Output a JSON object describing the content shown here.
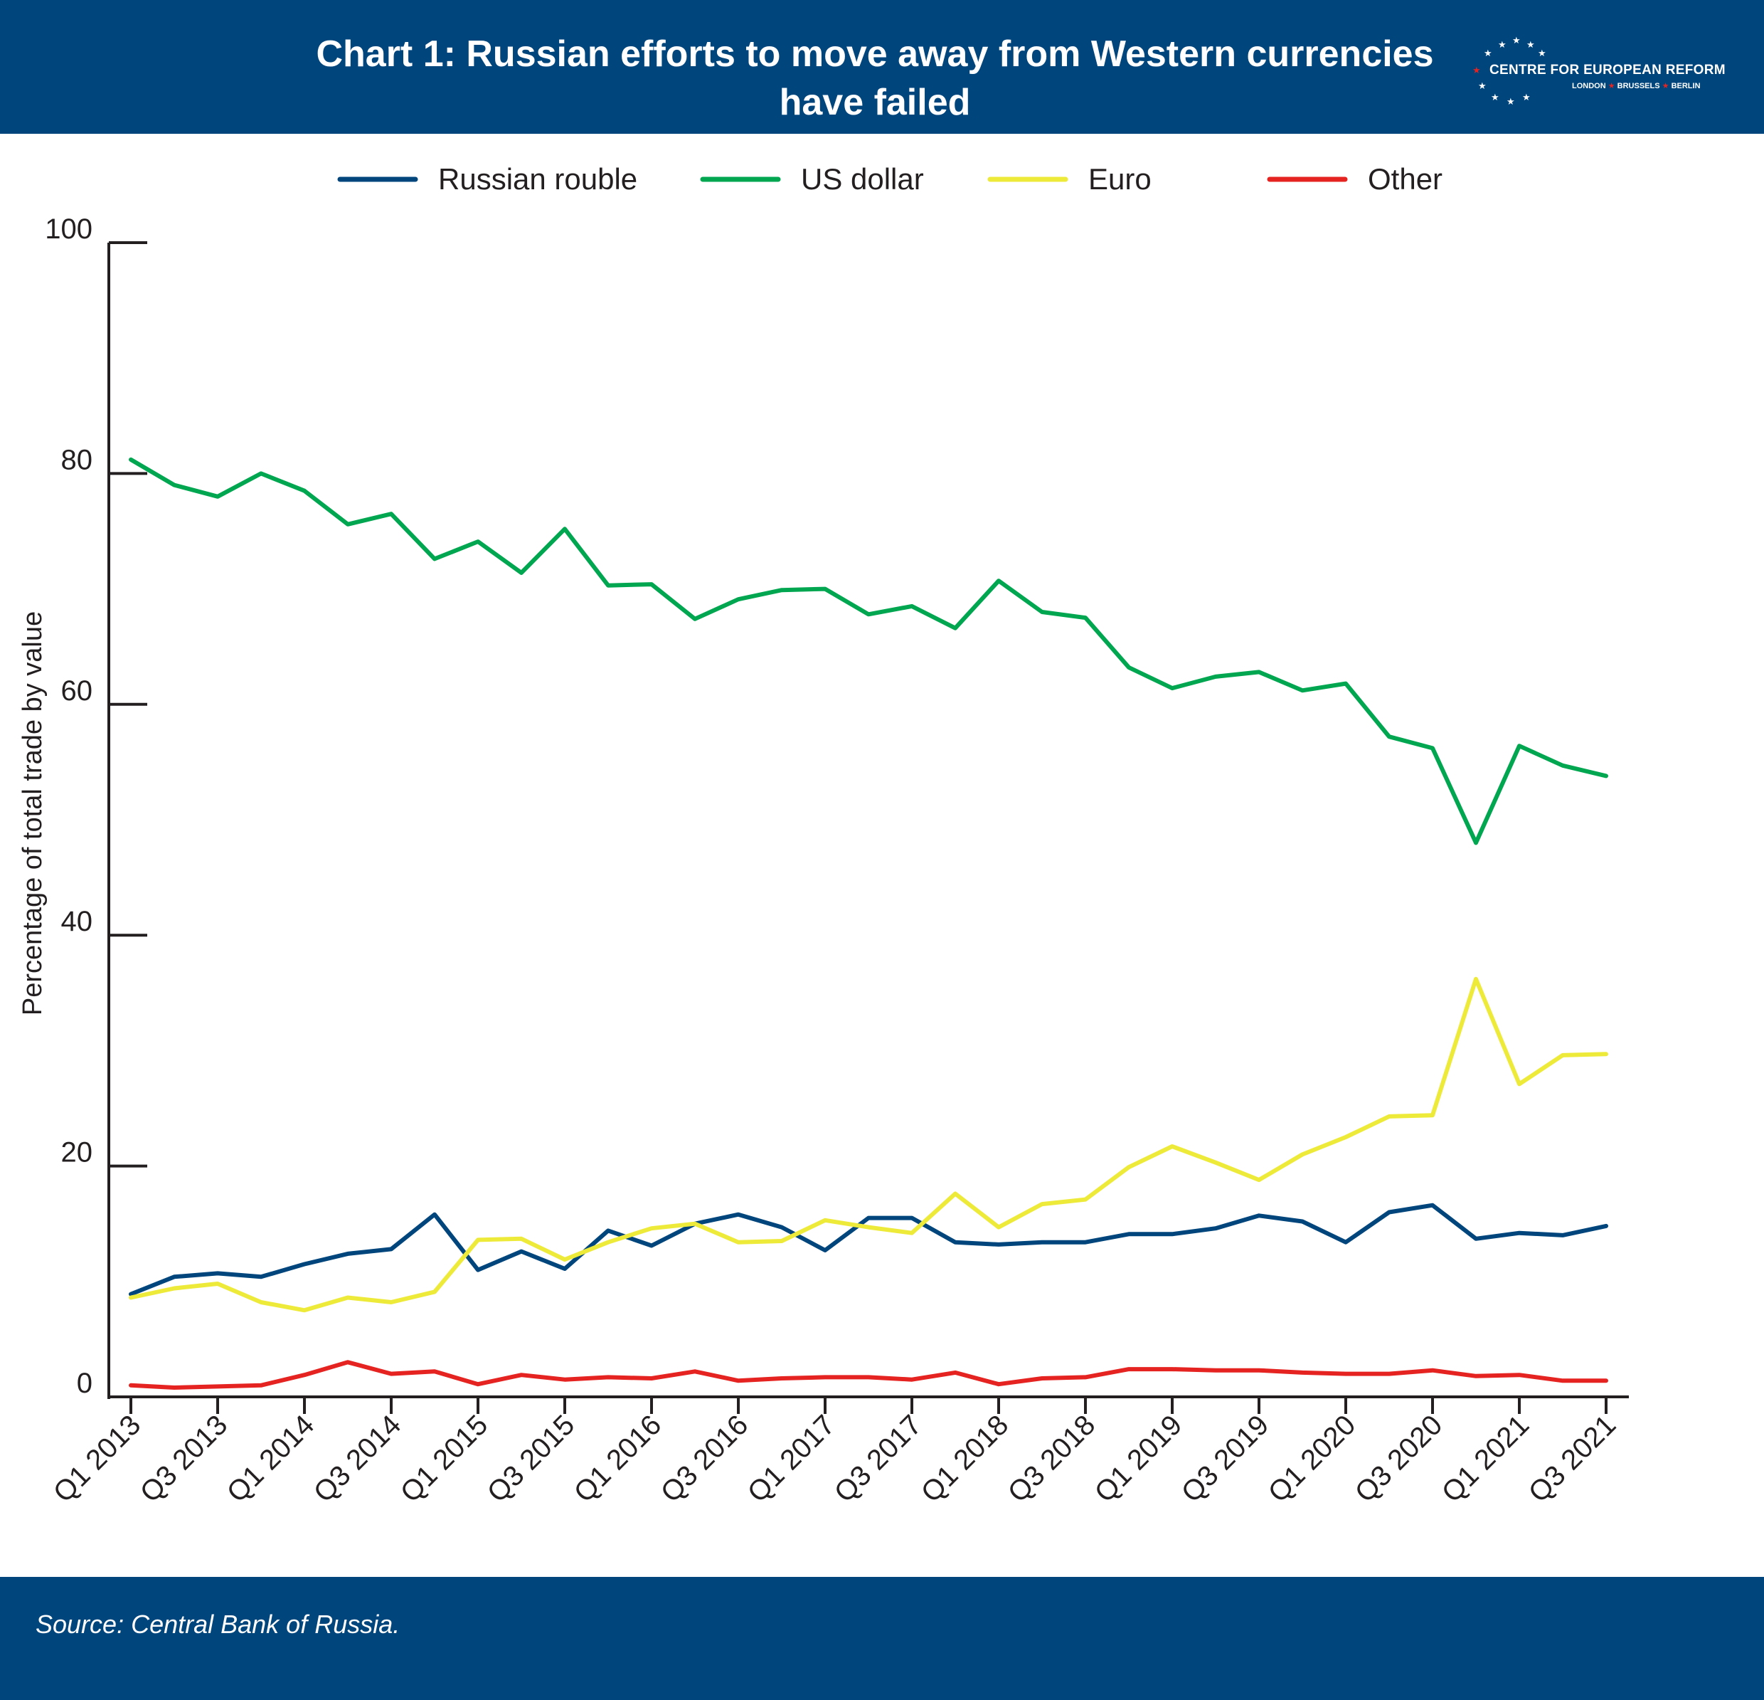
{
  "header": {
    "title_line1": "Chart 1: Russian efforts to move away from Western currencies",
    "title_line2": "have failed",
    "logo_name": "CENTRE FOR EUROPEAN REFORM",
    "logo_cities": [
      "LONDON",
      "BRUSSELS",
      "BERLIN"
    ],
    "background": "#00457c"
  },
  "footer": {
    "source": "Source: Central Bank of Russia."
  },
  "chart_data": {
    "type": "line",
    "title": "Chart 1: Russian efforts to move away from Western currencies have failed",
    "xlabel": "",
    "ylabel": "Percentage of total trade by value",
    "ylim": [
      0,
      100
    ],
    "yticks": [
      0,
      20,
      40,
      60,
      80,
      100
    ],
    "grid": false,
    "legend_position": "top",
    "x": [
      "Q1 2013",
      "Q2 2013",
      "Q3 2013",
      "Q4 2013",
      "Q1 2014",
      "Q2 2014",
      "Q3 2014",
      "Q4 2014",
      "Q1 2015",
      "Q2 2015",
      "Q3 2015",
      "Q4 2015",
      "Q1 2016",
      "Q2 2016",
      "Q3 2016",
      "Q4 2016",
      "Q1 2017",
      "Q2 2017",
      "Q3 2017",
      "Q4 2017",
      "Q1 2018",
      "Q2 2018",
      "Q3 2018",
      "Q4 2018",
      "Q1 2019",
      "Q2 2019",
      "Q3 2019",
      "Q4 2019",
      "Q1 2020",
      "Q2 2020",
      "Q3 2020",
      "Q4 2020",
      "Q1 2021",
      "Q2 2021",
      "Q3 2021"
    ],
    "xtick_labels": [
      "Q1 2013",
      "Q3 2013",
      "Q1 2014",
      "Q3 2014",
      "Q1 2015",
      "Q3 2015",
      "Q1 2016",
      "Q3 2016",
      "Q1 2017",
      "Q3 2017",
      "Q1 2018",
      "Q3 2018",
      "Q1 2019",
      "Q3 2019",
      "Q1 2020",
      "Q3 2020",
      "Q1 2021",
      "Q3 2021"
    ],
    "series": [
      {
        "name": "Russian rouble",
        "color": "#00457c",
        "values": [
          8.9,
          10.4,
          10.7,
          10.4,
          11.5,
          12.4,
          12.8,
          15.8,
          11.0,
          12.6,
          11.1,
          14.4,
          13.1,
          15.0,
          15.8,
          14.7,
          12.7,
          15.5,
          15.5,
          13.4,
          13.2,
          13.4,
          13.4,
          14.1,
          14.1,
          14.6,
          15.7,
          15.2,
          13.4,
          16.0,
          16.6,
          13.7,
          14.2,
          14.0,
          14.8
        ]
      },
      {
        "name": "US dollar",
        "color": "#00a650",
        "values": [
          81.2,
          79.0,
          78.0,
          80.0,
          78.5,
          75.6,
          76.5,
          72.6,
          74.1,
          71.4,
          75.2,
          70.3,
          70.4,
          67.4,
          69.1,
          69.9,
          70.0,
          67.8,
          68.5,
          66.6,
          70.7,
          68.0,
          67.5,
          63.2,
          61.4,
          62.4,
          62.8,
          61.2,
          61.8,
          57.2,
          56.2,
          48.0,
          56.4,
          54.7,
          53.8
        ]
      },
      {
        "name": "Euro",
        "color": "#eeea3a",
        "values": [
          8.6,
          9.4,
          9.8,
          8.2,
          7.5,
          8.6,
          8.2,
          9.1,
          13.6,
          13.7,
          11.9,
          13.4,
          14.6,
          15.0,
          13.4,
          13.5,
          15.3,
          14.7,
          14.2,
          17.6,
          14.7,
          16.7,
          17.1,
          19.9,
          21.7,
          20.3,
          18.8,
          21.0,
          22.5,
          24.3,
          24.4,
          36.2,
          27.1,
          29.6,
          29.7
        ]
      },
      {
        "name": "Other",
        "color": "#e52421",
        "values": [
          1.0,
          0.8,
          0.9,
          1.0,
          1.9,
          3.0,
          2.0,
          2.2,
          1.1,
          1.9,
          1.5,
          1.7,
          1.6,
          2.2,
          1.4,
          1.6,
          1.7,
          1.7,
          1.5,
          2.1,
          1.1,
          1.6,
          1.7,
          2.4,
          2.4,
          2.3,
          2.3,
          2.1,
          2.0,
          2.0,
          2.3,
          1.8,
          1.9,
          1.4,
          1.4
        ]
      }
    ]
  }
}
